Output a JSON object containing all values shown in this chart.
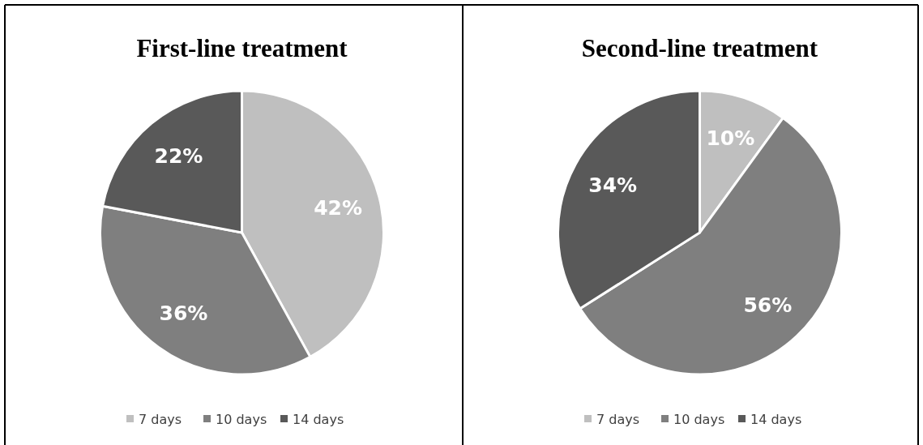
{
  "chart_data": [
    {
      "type": "pie",
      "title": "First-line treatment",
      "categories": [
        "7 days",
        "10 days",
        "14 days"
      ],
      "values": [
        42,
        36,
        22
      ],
      "colors": [
        "#bfbfbf",
        "#7f7f7f",
        "#595959"
      ],
      "value_labels": [
        "42%",
        "36%",
        "22%"
      ],
      "legend": "bottom"
    },
    {
      "type": "pie",
      "title": "Second-line treatment",
      "categories": [
        "7 days",
        "10 days",
        "14 days"
      ],
      "values": [
        10,
        56,
        34
      ],
      "colors": [
        "#bfbfbf",
        "#7f7f7f",
        "#595959"
      ],
      "value_labels": [
        "10%",
        "56%",
        "34%"
      ],
      "legend": "bottom"
    }
  ]
}
